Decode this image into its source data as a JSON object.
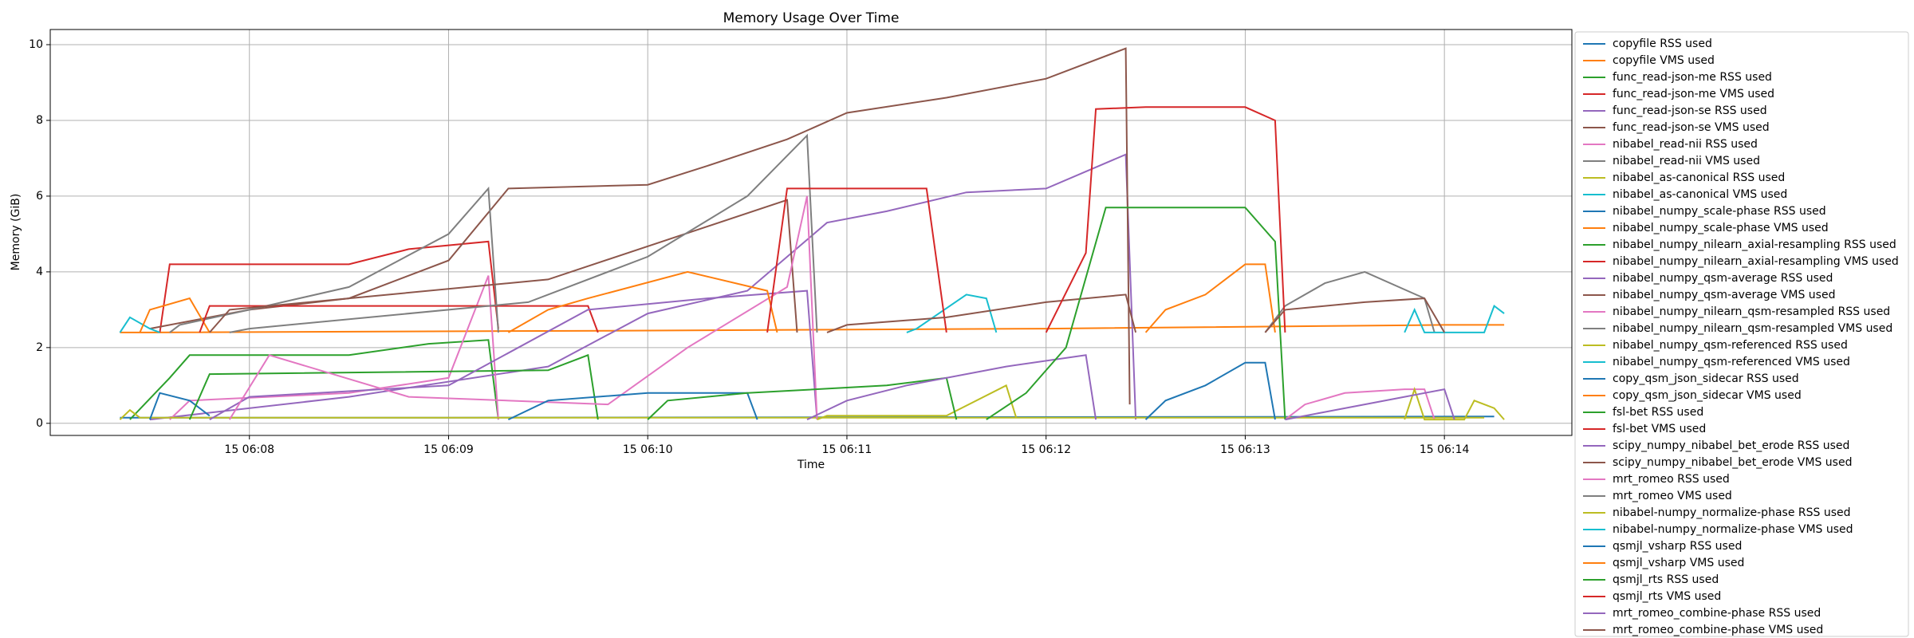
{
  "chart_data": {
    "type": "line",
    "title": "Memory Usage Over Time",
    "x_label": "Time",
    "y_label": "Memory (GiB)",
    "xlim": [
      7.0,
      14.64
    ],
    "ylim": [
      -0.32,
      10.4
    ],
    "xticks": [
      {
        "value": 8,
        "label": "15 06:08"
      },
      {
        "value": 9,
        "label": "15 06:09"
      },
      {
        "value": 10,
        "label": "15 06:10"
      },
      {
        "value": 11,
        "label": "15 06:11"
      },
      {
        "value": 12,
        "label": "15 06:12"
      },
      {
        "value": 13,
        "label": "15 06:13"
      },
      {
        "value": 14,
        "label": "15 06:14"
      }
    ],
    "yticks": [
      0,
      2,
      4,
      6,
      8,
      10
    ],
    "grid": true,
    "legend": "outside-right",
    "series": [
      {
        "name": "copyfile RSS used",
        "color": "#1f77b4",
        "x": [
          7.35,
          7.5,
          9.0,
          11.0,
          13.0,
          14.25
        ],
        "values": [
          0.15,
          0.15,
          0.15,
          0.16,
          0.17,
          0.18
        ]
      },
      {
        "name": "copyfile VMS used",
        "color": "#ff7f0e",
        "x": [
          7.35,
          7.5,
          10.0,
          12.0,
          14.0,
          14.3
        ],
        "values": [
          2.4,
          2.4,
          2.45,
          2.5,
          2.6,
          2.6
        ]
      },
      {
        "name": "func_read-json-me RSS used",
        "color": "#2ca02c",
        "x": [
          7.4,
          7.6,
          7.7,
          8.5,
          8.9,
          9.2,
          9.25
        ],
        "values": [
          0.1,
          1.2,
          1.8,
          1.8,
          2.1,
          2.2,
          0.1
        ]
      },
      {
        "name": "func_read-json-me VMS used",
        "color": "#d62728",
        "x": [
          7.55,
          7.6,
          8.5,
          8.8,
          9.2,
          9.25
        ],
        "values": [
          2.4,
          4.2,
          4.2,
          4.6,
          4.8,
          2.5
        ]
      },
      {
        "name": "func_read-json-se RSS used",
        "color": "#9467bd",
        "x": [
          7.5,
          8.5,
          9.5,
          10.0,
          10.5,
          10.9,
          11.2,
          11.6,
          12.0,
          12.4,
          12.45
        ],
        "values": [
          0.1,
          0.7,
          1.5,
          2.9,
          3.5,
          5.3,
          5.6,
          6.1,
          6.2,
          7.1,
          0.1
        ]
      },
      {
        "name": "func_read-json-se VMS used",
        "color": "#8c564b",
        "x": [
          7.5,
          8.0,
          8.5,
          9.0,
          9.3,
          10.0,
          10.3,
          10.7,
          11.0,
          11.5,
          12.0,
          12.4,
          12.42
        ],
        "values": [
          2.5,
          3.0,
          3.3,
          4.3,
          6.2,
          6.3,
          6.8,
          7.5,
          8.2,
          8.6,
          9.1,
          9.9,
          0.5
        ]
      },
      {
        "name": "nibabel_read-nii RSS used",
        "color": "#e377c2",
        "x": [
          7.6,
          7.7,
          8.5,
          9.0,
          9.2,
          9.25
        ],
        "values": [
          0.1,
          0.6,
          0.8,
          1.2,
          3.9,
          0.1
        ]
      },
      {
        "name": "nibabel_read-nii VMS used",
        "color": "#7f7f7f",
        "x": [
          7.6,
          7.65,
          8.0,
          8.5,
          9.0,
          9.2,
          9.25
        ],
        "values": [
          2.4,
          2.6,
          3.0,
          3.6,
          5.0,
          6.2,
          2.4
        ]
      },
      {
        "name": "nibabel_as-canonical RSS used",
        "color": "#bcbd22",
        "x": [
          7.35,
          7.4,
          7.45,
          7.6,
          14.2
        ],
        "values": [
          0.1,
          0.35,
          0.15,
          0.15,
          0.15
        ]
      },
      {
        "name": "nibabel_as-canonical VMS used",
        "color": "#17becf",
        "x": [
          7.35,
          7.4,
          7.5,
          7.55
        ],
        "values": [
          2.4,
          2.8,
          2.5,
          2.4
        ]
      },
      {
        "name": "nibabel_numpy_scale-phase RSS used",
        "color": "#1f77b4",
        "x": [
          7.5,
          7.55,
          7.7,
          7.8
        ],
        "values": [
          0.1,
          0.8,
          0.6,
          0.2
        ]
      },
      {
        "name": "nibabel_numpy_scale-phase VMS used",
        "color": "#ff7f0e",
        "x": [
          7.45,
          7.5,
          7.7,
          7.8
        ],
        "values": [
          2.4,
          3.0,
          3.3,
          2.4
        ]
      },
      {
        "name": "nibabel_numpy_nilearn_axial-resampling RSS used",
        "color": "#2ca02c",
        "x": [
          7.7,
          7.8,
          9.5,
          9.7,
          9.75
        ],
        "values": [
          0.1,
          1.3,
          1.4,
          1.8,
          0.1
        ]
      },
      {
        "name": "nibabel_numpy_nilearn_axial-resampling VMS used",
        "color": "#d62728",
        "x": [
          7.75,
          7.8,
          9.7,
          9.75
        ],
        "values": [
          2.4,
          3.1,
          3.1,
          2.4
        ]
      },
      {
        "name": "nibabel_numpy_qsm-average RSS used",
        "color": "#9467bd",
        "x": [
          7.8,
          8.0,
          9.0,
          9.7,
          10.3,
          10.8,
          10.85
        ],
        "values": [
          0.1,
          0.7,
          1.0,
          3.0,
          3.3,
          3.5,
          0.1
        ]
      },
      {
        "name": "nibabel_numpy_qsm-average VMS used",
        "color": "#8c564b",
        "x": [
          7.8,
          7.9,
          8.5,
          9.5,
          10.3,
          10.7,
          10.75
        ],
        "values": [
          2.4,
          3.0,
          3.3,
          3.8,
          5.2,
          5.9,
          2.4
        ]
      },
      {
        "name": "nibabel_numpy_nilearn_qsm-resampled RSS used",
        "color": "#e377c2",
        "x": [
          7.9,
          8.1,
          8.8,
          9.8,
          10.2,
          10.7,
          10.8,
          10.85
        ],
        "values": [
          0.1,
          1.8,
          0.7,
          0.5,
          2.0,
          3.6,
          6.0,
          0.1
        ]
      },
      {
        "name": "nibabel_numpy_nilearn_qsm-resampled VMS used",
        "color": "#7f7f7f",
        "x": [
          7.9,
          8.0,
          9.4,
          10.0,
          10.5,
          10.8,
          10.85
        ],
        "values": [
          2.4,
          2.5,
          3.2,
          4.4,
          6.0,
          7.6,
          2.4
        ]
      },
      {
        "name": "nibabel_numpy_qsm-referenced RSS used",
        "color": "#bcbd22",
        "x": [
          10.85,
          10.9,
          11.5,
          11.8,
          11.85
        ],
        "values": [
          0.1,
          0.2,
          0.2,
          1.0,
          0.15
        ]
      },
      {
        "name": "nibabel_numpy_qsm-referenced VMS used",
        "color": "#17becf",
        "x": [
          11.3,
          11.35,
          11.6,
          11.7,
          11.75
        ],
        "values": [
          2.4,
          2.5,
          3.4,
          3.3,
          2.4
        ]
      },
      {
        "name": "copy_qsm_json_sidecar RSS used",
        "color": "#1f77b4",
        "x": [
          9.3,
          9.5,
          10.0,
          10.5,
          10.55
        ],
        "values": [
          0.1,
          0.6,
          0.8,
          0.8,
          0.1
        ]
      },
      {
        "name": "copy_qsm_json_sidecar VMS used",
        "color": "#ff7f0e",
        "x": [
          9.3,
          9.5,
          9.7,
          10.2,
          10.6,
          10.65
        ],
        "values": [
          2.4,
          3.0,
          3.3,
          4.0,
          3.5,
          2.4
        ]
      },
      {
        "name": "fsl-bet RSS used",
        "color": "#2ca02c",
        "x": [
          10.0,
          10.1,
          10.5,
          11.2,
          11.5,
          11.55
        ],
        "values": [
          0.1,
          0.6,
          0.8,
          1.0,
          1.2,
          0.1
        ]
      },
      {
        "name": "fsl-bet VMS used",
        "color": "#d62728",
        "x": [
          10.6,
          10.7,
          11.0,
          11.4,
          11.5
        ],
        "values": [
          2.4,
          6.2,
          6.2,
          6.2,
          2.4
        ]
      },
      {
        "name": "scipy_numpy_nibabel_bet_erode RSS used",
        "color": "#9467bd",
        "x": [
          10.8,
          11.0,
          11.3,
          11.8,
          12.2,
          12.25
        ],
        "values": [
          0.1,
          0.6,
          1.0,
          1.5,
          1.8,
          0.1
        ]
      },
      {
        "name": "scipy_numpy_nibabel_bet_erode VMS used",
        "color": "#8c564b",
        "x": [
          10.9,
          11.0,
          11.5,
          12.0,
          12.4,
          12.45
        ],
        "values": [
          2.4,
          2.6,
          2.8,
          3.2,
          3.4,
          2.4
        ]
      },
      {
        "name": "mrt_romeo RSS used",
        "color": "#e377c2",
        "x": [
          13.2,
          13.3,
          13.5,
          13.8,
          13.9,
          13.95
        ],
        "values": [
          0.1,
          0.5,
          0.8,
          0.9,
          0.9,
          0.1
        ]
      },
      {
        "name": "mrt_romeo VMS used",
        "color": "#7f7f7f",
        "x": [
          13.1,
          13.2,
          13.4,
          13.6,
          13.9,
          13.95
        ],
        "values": [
          2.4,
          3.1,
          3.7,
          4.0,
          3.3,
          2.4
        ]
      },
      {
        "name": "nibabel-numpy_normalize-phase RSS used",
        "color": "#bcbd22",
        "x": [
          13.8,
          13.85,
          13.9,
          14.1,
          14.15,
          14.25,
          14.3
        ],
        "values": [
          0.1,
          0.9,
          0.1,
          0.1,
          0.6,
          0.4,
          0.1
        ]
      },
      {
        "name": "nibabel-numpy_normalize-phase VMS used",
        "color": "#17becf",
        "x": [
          13.8,
          13.85,
          13.9,
          14.2,
          14.25,
          14.3
        ],
        "values": [
          2.4,
          3.0,
          2.4,
          2.4,
          3.1,
          2.9
        ]
      },
      {
        "name": "qsmjl_vsharp RSS used",
        "color": "#1f77b4",
        "x": [
          12.5,
          12.6,
          12.8,
          13.0,
          13.1,
          13.15
        ],
        "values": [
          0.1,
          0.6,
          1.0,
          1.6,
          1.6,
          0.1
        ]
      },
      {
        "name": "qsmjl_vsharp VMS used",
        "color": "#ff7f0e",
        "x": [
          12.5,
          12.6,
          12.8,
          13.0,
          13.1,
          13.15
        ],
        "values": [
          2.4,
          3.0,
          3.4,
          4.2,
          4.2,
          2.4
        ]
      },
      {
        "name": "qsmjl_rts RSS used",
        "color": "#2ca02c",
        "x": [
          11.7,
          11.9,
          12.1,
          12.3,
          12.5,
          13.0,
          13.15,
          13.2
        ],
        "values": [
          0.1,
          0.8,
          2.0,
          5.7,
          5.7,
          5.7,
          4.8,
          0.1
        ]
      },
      {
        "name": "qsmjl_rts VMS used",
        "color": "#d62728",
        "x": [
          12.0,
          12.2,
          12.25,
          12.5,
          13.0,
          13.15,
          13.2
        ],
        "values": [
          2.4,
          4.5,
          8.3,
          8.35,
          8.35,
          8.0,
          2.4
        ]
      },
      {
        "name": "mrt_romeo_combine-phase RSS used",
        "color": "#9467bd",
        "x": [
          13.2,
          13.4,
          13.6,
          13.8,
          14.0,
          14.05
        ],
        "values": [
          0.1,
          0.3,
          0.5,
          0.7,
          0.9,
          0.1
        ]
      },
      {
        "name": "mrt_romeo_combine-phase VMS used",
        "color": "#8c564b",
        "x": [
          13.1,
          13.2,
          13.6,
          13.9,
          14.0
        ],
        "values": [
          2.4,
          3.0,
          3.2,
          3.3,
          2.4
        ]
      }
    ]
  }
}
